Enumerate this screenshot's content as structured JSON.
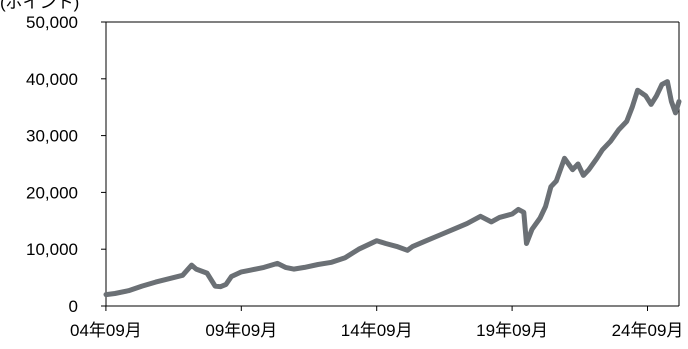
{
  "chart_data": {
    "type": "line",
    "unit_label": "(ポイント)",
    "x_tick_labels": [
      "04年09月",
      "09年09月",
      "14年09月",
      "19年09月",
      "24年09月"
    ],
    "y_tick_labels": [
      "0",
      "10,000",
      "20,000",
      "30,000",
      "40,000",
      "50,000"
    ],
    "ylim": [
      0,
      50000
    ],
    "xlim": [
      2004.67,
      2025.83
    ],
    "grid": false,
    "colors": {
      "line": "#6b7075",
      "axis": "#000000"
    },
    "series": [
      {
        "x": [
          2004.67,
          2005.0,
          2005.5,
          2006.0,
          2006.5,
          2007.0,
          2007.5,
          2007.83,
          2008.0,
          2008.4,
          2008.7,
          2008.9,
          2009.1,
          2009.3,
          2009.67,
          2010.0,
          2010.5,
          2011.0,
          2011.3,
          2011.6,
          2012.0,
          2012.5,
          2013.0,
          2013.5,
          2014.0,
          2014.67,
          2015.0,
          2015.4,
          2015.8,
          2016.0,
          2016.5,
          2017.0,
          2017.5,
          2018.0,
          2018.5,
          2018.9,
          2019.2,
          2019.67,
          2019.9,
          2020.1,
          2020.2,
          2020.4,
          2020.7,
          2020.9,
          2021.1,
          2021.3,
          2021.6,
          2021.9,
          2022.1,
          2022.3,
          2022.5,
          2022.8,
          2023.0,
          2023.3,
          2023.6,
          2023.9,
          2024.1,
          2024.3,
          2024.6,
          2024.8,
          2025.0,
          2025.2,
          2025.4,
          2025.55,
          2025.7,
          2025.83
        ],
        "values": [
          2000,
          2200,
          2700,
          3500,
          4200,
          4800,
          5400,
          7200,
          6500,
          5800,
          3500,
          3400,
          3800,
          5200,
          6000,
          6300,
          6800,
          7500,
          6800,
          6500,
          6800,
          7300,
          7700,
          8500,
          10000,
          11500,
          11000,
          10500,
          9800,
          10500,
          11500,
          12500,
          13500,
          14500,
          15800,
          14800,
          15600,
          16200,
          17000,
          16500,
          11000,
          13500,
          15500,
          17500,
          21000,
          22000,
          26000,
          24000,
          25000,
          23000,
          24000,
          26000,
          27500,
          29000,
          31000,
          32500,
          35000,
          38000,
          37000,
          35500,
          37000,
          39000,
          39500,
          36000,
          34000,
          36000
        ]
      }
    ]
  }
}
